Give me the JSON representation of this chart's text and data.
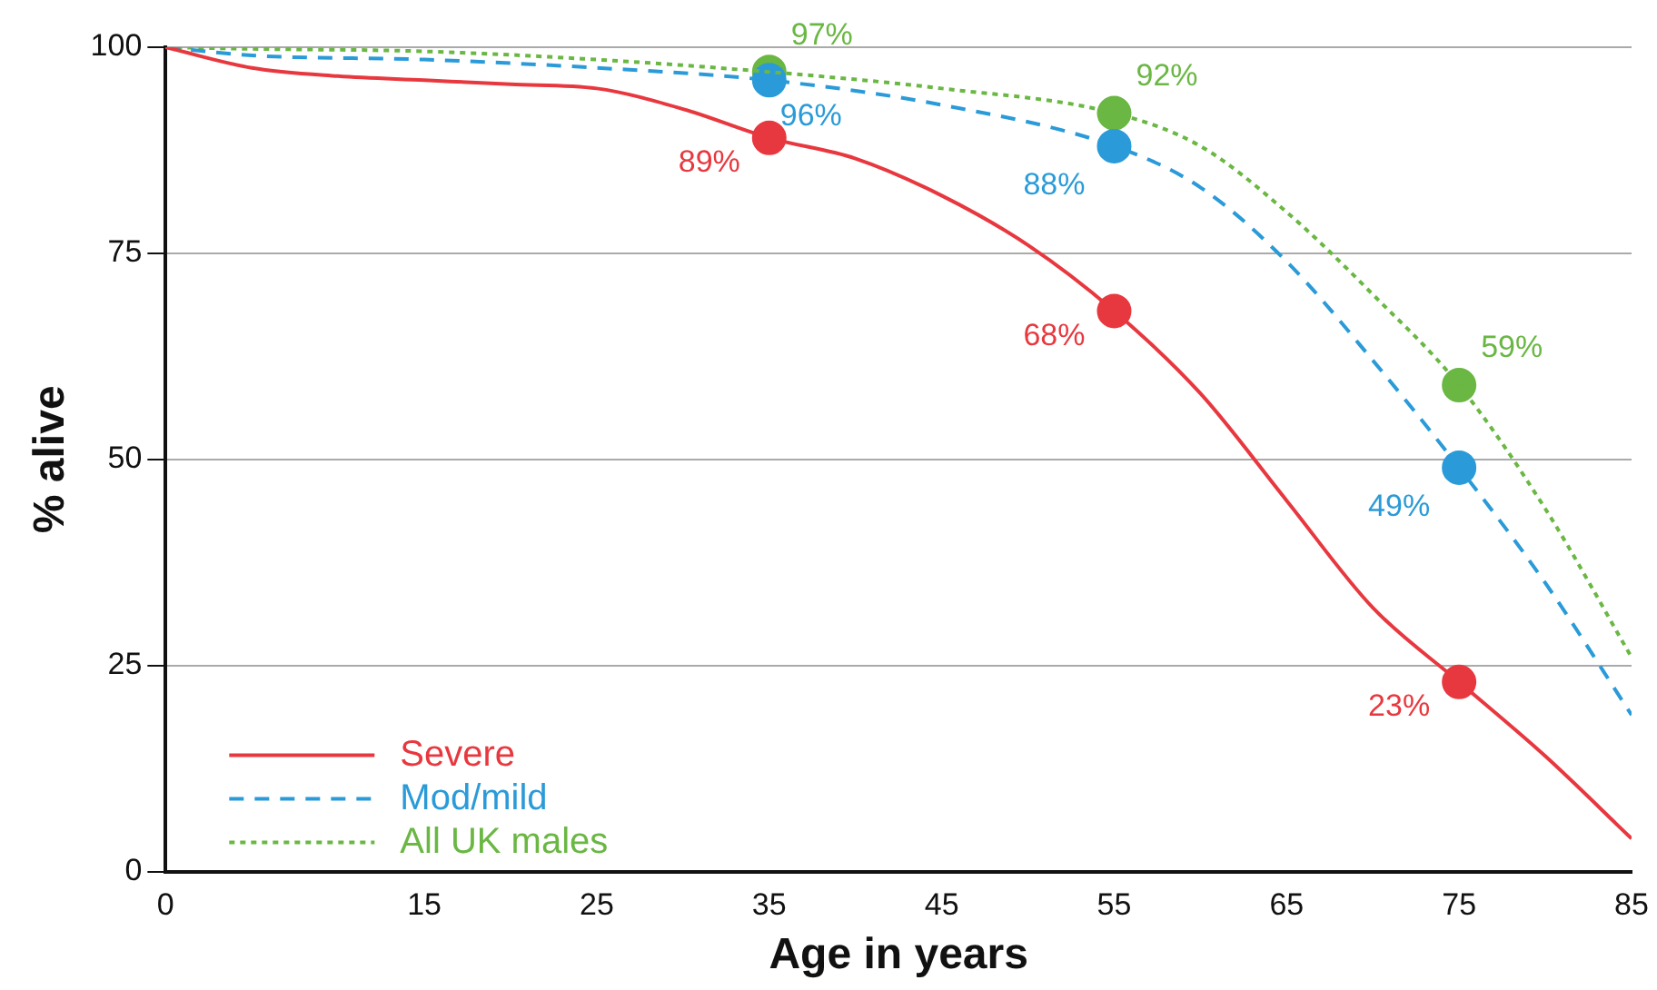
{
  "chart_data": {
    "type": "line",
    "xlabel": "Age in years",
    "ylabel": "% alive",
    "xlim": [
      0,
      85
    ],
    "xticks": [
      0,
      15,
      25,
      35,
      45,
      55,
      65,
      75,
      85
    ],
    "ylim": [
      0,
      100
    ],
    "yticks": [
      0,
      25,
      50,
      75,
      100
    ],
    "grid": "y",
    "legend": "bottom left",
    "marker": "none",
    "series": [
      {
        "name": "Severe",
        "color": "#e8383f",
        "line_style": "solid",
        "x": [
          0,
          5,
          10,
          15,
          20,
          25,
          30,
          35,
          40,
          45,
          50,
          55,
          60,
          65,
          70,
          75,
          80,
          85
        ],
        "values": [
          100,
          97.5,
          96.5,
          96,
          95.5,
          95,
          92.5,
          89,
          86.5,
          82,
          76,
          68,
          58,
          45,
          32,
          23,
          14,
          4
        ]
      },
      {
        "name": "Mod/mild",
        "color": "#2a9bd8",
        "line_style": "dashed",
        "x": [
          0,
          5,
          15,
          25,
          35,
          45,
          55,
          60,
          65,
          70,
          75,
          80,
          85
        ],
        "values": [
          100,
          99,
          98.5,
          97.5,
          96,
          93,
          88,
          83,
          74,
          62,
          49,
          35,
          19
        ]
      },
      {
        "name": "All UK males",
        "color": "#6ab743",
        "line_style": "dotted",
        "x": [
          0,
          5,
          15,
          25,
          35,
          45,
          55,
          60,
          65,
          70,
          75,
          80,
          85
        ],
        "values": [
          100,
          99.8,
          99.5,
          98.5,
          97,
          95,
          92,
          88,
          80,
          70,
          59,
          44,
          26
        ]
      },
      {
        "type": "scatter",
        "color": "#e8383f",
        "marker": "circle",
        "x": [
          35,
          55,
          75
        ],
        "values": [
          89,
          68,
          23
        ],
        "value_labels": [
          "89%",
          "68%",
          "23%"
        ]
      },
      {
        "type": "scatter",
        "color": "#2a9bd8",
        "marker": "circle",
        "x": [
          35,
          55,
          75
        ],
        "values": [
          96,
          88,
          49
        ],
        "value_labels": [
          "96%",
          "88%",
          "49%"
        ]
      },
      {
        "type": "scatter",
        "color": "#6ab743",
        "marker": "circle",
        "x": [
          35,
          55,
          75
        ],
        "values": [
          97,
          92,
          59
        ],
        "value_labels": [
          "97%",
          "92%",
          "59%"
        ]
      }
    ]
  }
}
